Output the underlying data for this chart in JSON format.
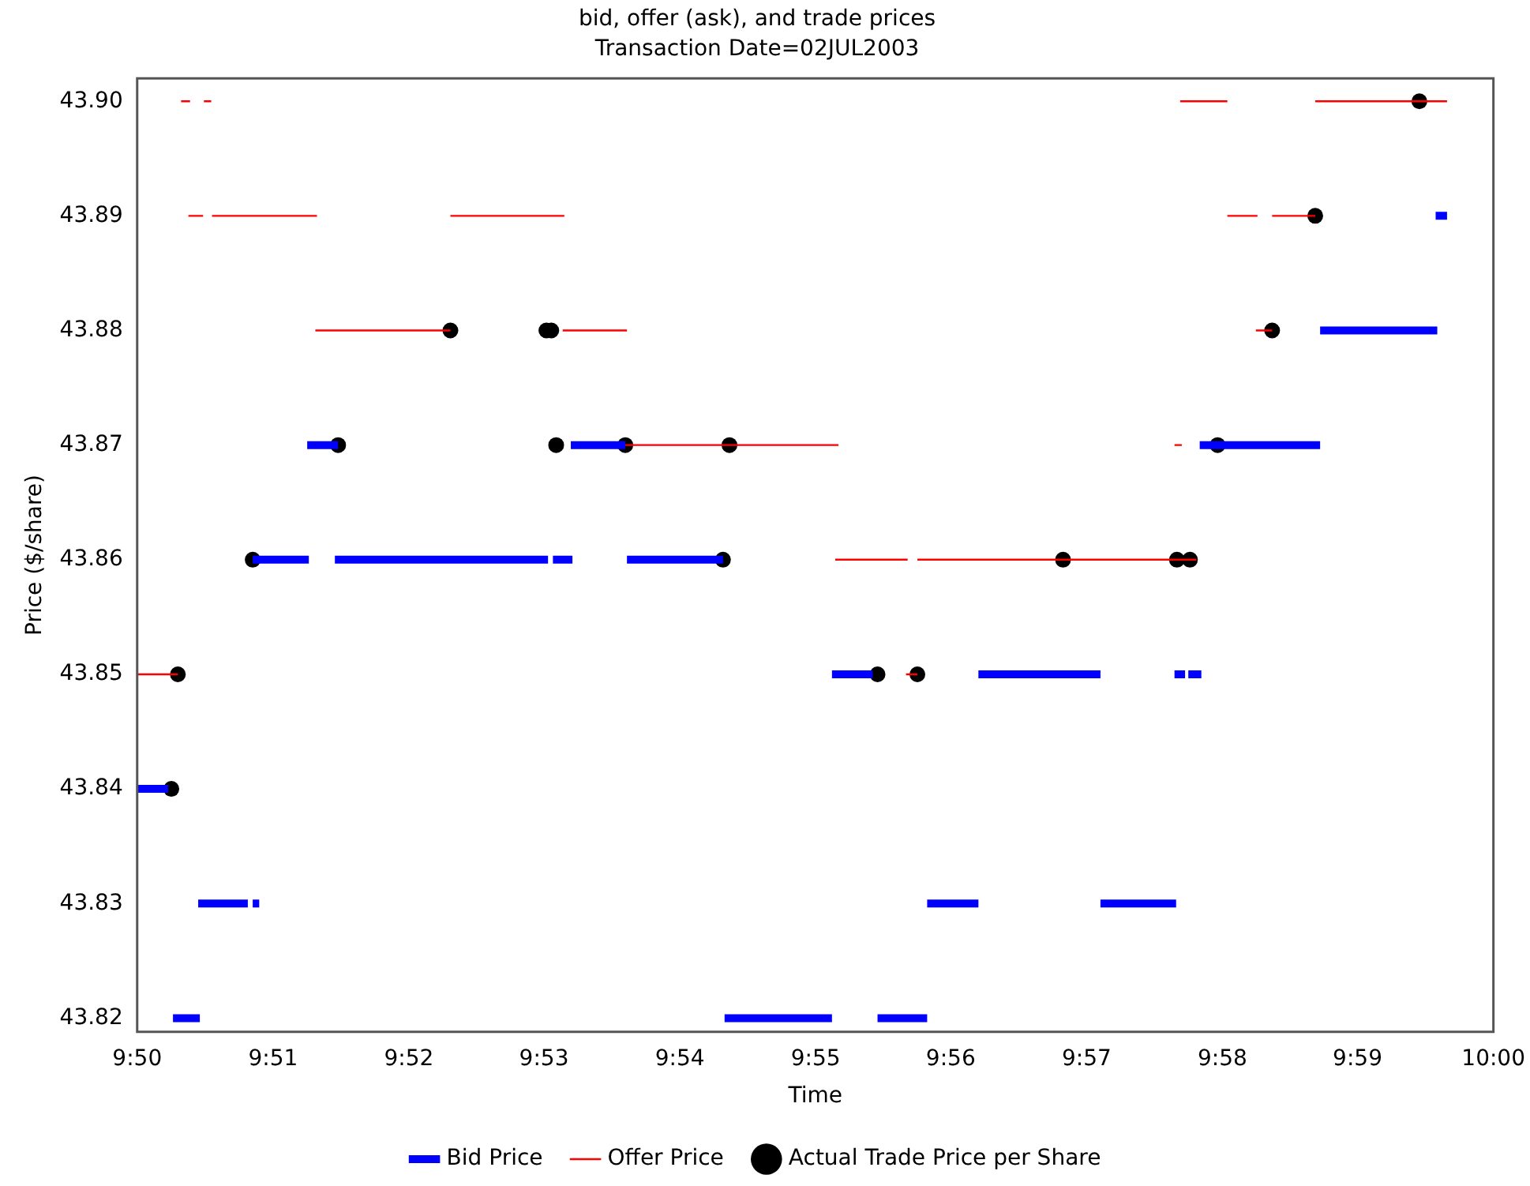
{
  "chart_data": {
    "type": "line",
    "title": "bid, offer (ask), and trade prices",
    "subtitle": "Transaction Date=02JUL2003",
    "xlabel": "Time",
    "ylabel": "Price ($/share)",
    "xlim": [
      9.8333,
      10
    ],
    "xticks": [
      {
        "value": 9.8333,
        "label": "9:50"
      },
      {
        "value": 9.85,
        "label": "9:51"
      },
      {
        "value": 9.8667,
        "label": "9:52"
      },
      {
        "value": 9.8833,
        "label": "9:53"
      },
      {
        "value": 9.9,
        "label": "9:54"
      },
      {
        "value": 9.9167,
        "label": "9:55"
      },
      {
        "value": 9.9333,
        "label": "9:56"
      },
      {
        "value": 9.95,
        "label": "9:57"
      },
      {
        "value": 9.9667,
        "label": "9:58"
      },
      {
        "value": 9.9833,
        "label": "9:59"
      },
      {
        "value": 10,
        "label": "10:00"
      }
    ],
    "ylim": [
      43.8188,
      43.902
    ],
    "yticks": [
      {
        "value": 43.82,
        "label": "43.82"
      },
      {
        "value": 43.83,
        "label": "43.83"
      },
      {
        "value": 43.84,
        "label": "43.84"
      },
      {
        "value": 43.85,
        "label": "43.85"
      },
      {
        "value": 43.86,
        "label": "43.86"
      },
      {
        "value": 43.87,
        "label": "43.87"
      },
      {
        "value": 43.88,
        "label": "43.88"
      },
      {
        "value": 43.89,
        "label": "43.89"
      },
      {
        "value": 43.9,
        "label": "43.90"
      }
    ],
    "grid": false,
    "legend": "bottom",
    "series": [
      {
        "name": "Bid Price",
        "type": "line",
        "color": "#0000ff",
        "marker": "none",
        "line_style": "solid",
        "x": [
          9.8333,
          9.8371,
          null,
          9.8377,
          9.841,
          null,
          9.8408,
          9.8469,
          null,
          9.8475,
          9.8483,
          null,
          9.8475,
          9.8544,
          null,
          9.8542,
          9.858,
          null,
          9.8576,
          9.8838,
          null,
          9.8844,
          9.8868,
          null,
          9.8866,
          9.8933,
          null,
          9.8935,
          9.9053,
          null,
          9.9055,
          9.9187,
          null,
          9.9187,
          9.9237,
          null,
          9.9243,
          9.9304,
          null,
          9.9304,
          9.9367,
          null,
          9.9367,
          9.9517,
          null,
          9.9517,
          9.961,
          null,
          9.9608,
          9.9621,
          null,
          9.9625,
          9.9641,
          null,
          9.9639,
          9.9787,
          null,
          9.9787,
          9.9931,
          null,
          9.9929,
          9.9943
        ],
        "values": [
          43.84,
          43.84,
          null,
          43.82,
          43.82,
          null,
          43.83,
          43.83,
          null,
          43.83,
          43.83,
          null,
          43.86,
          43.86,
          null,
          43.87,
          43.87,
          null,
          43.86,
          43.86,
          null,
          43.86,
          43.86,
          null,
          43.87,
          43.87,
          null,
          43.86,
          43.86,
          null,
          43.82,
          43.82,
          null,
          43.85,
          43.85,
          null,
          43.82,
          43.82,
          null,
          43.83,
          43.83,
          null,
          43.85,
          43.85,
          null,
          43.83,
          43.83,
          null,
          43.85,
          43.85,
          null,
          43.85,
          43.85,
          null,
          43.87,
          43.87,
          null,
          43.88,
          43.88,
          null,
          43.89,
          43.89
        ]
      },
      {
        "name": "Offer Price",
        "type": "line",
        "color": "#ff0000",
        "marker": "none",
        "line_style": "solid",
        "x": [
          9.8333,
          9.8383,
          null,
          9.8387,
          9.8398,
          null,
          9.8396,
          9.8414,
          null,
          9.8415,
          9.8424,
          null,
          9.8425,
          9.8554,
          null,
          9.8552,
          9.8718,
          null,
          9.8718,
          9.8858,
          null,
          9.8856,
          9.8935,
          null,
          9.8933,
          9.9195,
          null,
          9.9191,
          9.928,
          null,
          9.9278,
          9.9292,
          null,
          9.9292,
          9.9635,
          null,
          9.9608,
          9.9617,
          null,
          9.9615,
          9.9673,
          null,
          9.9673,
          9.971,
          null,
          9.9708,
          9.9728,
          null,
          9.9728,
          9.9781,
          null,
          9.9781,
          9.9943
        ],
        "values": [
          43.85,
          43.85,
          null,
          43.9,
          43.9,
          null,
          43.89,
          43.89,
          null,
          43.9,
          43.9,
          null,
          43.89,
          43.89,
          null,
          43.88,
          43.88,
          null,
          43.89,
          43.89,
          null,
          43.88,
          43.88,
          null,
          43.87,
          43.87,
          null,
          43.86,
          43.86,
          null,
          43.85,
          43.85,
          null,
          43.86,
          43.86,
          null,
          43.87,
          43.87,
          null,
          43.9,
          43.9,
          null,
          43.89,
          43.89,
          null,
          43.88,
          43.88,
          null,
          43.89,
          43.89,
          null,
          43.9,
          43.9
        ]
      },
      {
        "name": "Actual Trade Price per Share",
        "type": "scatter",
        "color": "#000000",
        "marker": "circle",
        "x": [
          9.8375,
          9.8383,
          9.8475,
          9.858,
          9.8718,
          9.8836,
          9.8842,
          9.8848,
          9.8933,
          9.9053,
          9.9061,
          9.9243,
          9.9292,
          9.9471,
          9.9611,
          9.9627,
          9.9661,
          9.9728,
          9.9781,
          9.9909
        ],
        "values": [
          43.84,
          43.85,
          43.86,
          43.87,
          43.88,
          43.88,
          43.88,
          43.87,
          43.87,
          43.86,
          43.87,
          43.85,
          43.85,
          43.86,
          43.86,
          43.86,
          43.87,
          43.88,
          43.89,
          43.9
        ]
      }
    ]
  }
}
